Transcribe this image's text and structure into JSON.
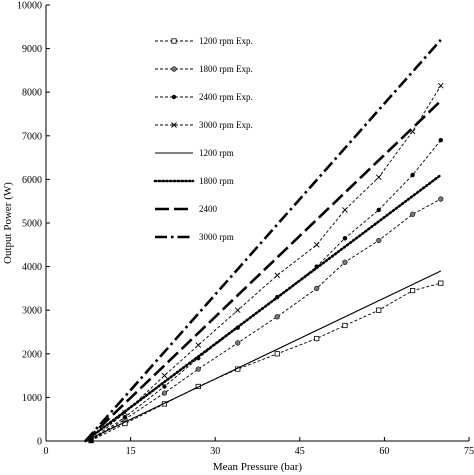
{
  "chart_data": {
    "type": "line",
    "xlabel": "Mean Pressure (bar)",
    "ylabel": "Output Power (W)",
    "xlim": [
      0,
      75
    ],
    "ylim": [
      0,
      10000
    ],
    "xticks": [
      0,
      15,
      30,
      45,
      60,
      75
    ],
    "yticks": [
      0,
      1000,
      2000,
      3000,
      4000,
      5000,
      6000,
      7000,
      8000,
      9000,
      10000
    ],
    "grid": false,
    "legend_position": "top-center",
    "series": [
      {
        "name": "1200 rpm Exp.",
        "style": "dash-square",
        "x": [
          7,
          8,
          14,
          21,
          27,
          34,
          41,
          48,
          53,
          59,
          65,
          70
        ],
        "y": [
          0,
          10,
          400,
          850,
          1250,
          1650,
          2000,
          2350,
          2650,
          3000,
          3450,
          3620
        ]
      },
      {
        "name": "1800 rpm Exp.",
        "style": "dash-circle",
        "x": [
          7,
          8,
          14,
          21,
          27,
          34,
          41,
          48,
          53,
          59,
          65,
          70
        ],
        "y": [
          0,
          10,
          500,
          1100,
          1650,
          2250,
          2850,
          3500,
          4100,
          4600,
          5200,
          5550
        ]
      },
      {
        "name": "2400 rpm Exp.",
        "style": "dash-diamond",
        "x": [
          7,
          8,
          14,
          21,
          27,
          34,
          41,
          48,
          53,
          59,
          65,
          70
        ],
        "y": [
          0,
          10,
          550,
          1250,
          1900,
          2600,
          3300,
          4000,
          4650,
          5300,
          6100,
          6900
        ]
      },
      {
        "name": "3000 rpm Exp.",
        "style": "dash-x",
        "x": [
          7,
          8,
          14,
          21,
          27,
          34,
          41,
          48,
          53,
          59,
          65,
          70
        ],
        "y": [
          0,
          10,
          650,
          1500,
          2200,
          3000,
          3800,
          4500,
          5300,
          6050,
          7100,
          8150
        ]
      },
      {
        "name": "1200 rpm",
        "style": "solid",
        "x": [
          7,
          70
        ],
        "y": [
          0,
          3900
        ]
      },
      {
        "name": "1800 rpm",
        "style": "dotted",
        "x": [
          7,
          70
        ],
        "y": [
          0,
          6100
        ]
      },
      {
        "name": "2400",
        "style": "long-dash",
        "x": [
          7,
          70
        ],
        "y": [
          0,
          7800
        ]
      },
      {
        "name": "3000 rpm",
        "style": "dash-dot",
        "x": [
          7,
          70
        ],
        "y": [
          0,
          9200
        ]
      }
    ]
  }
}
